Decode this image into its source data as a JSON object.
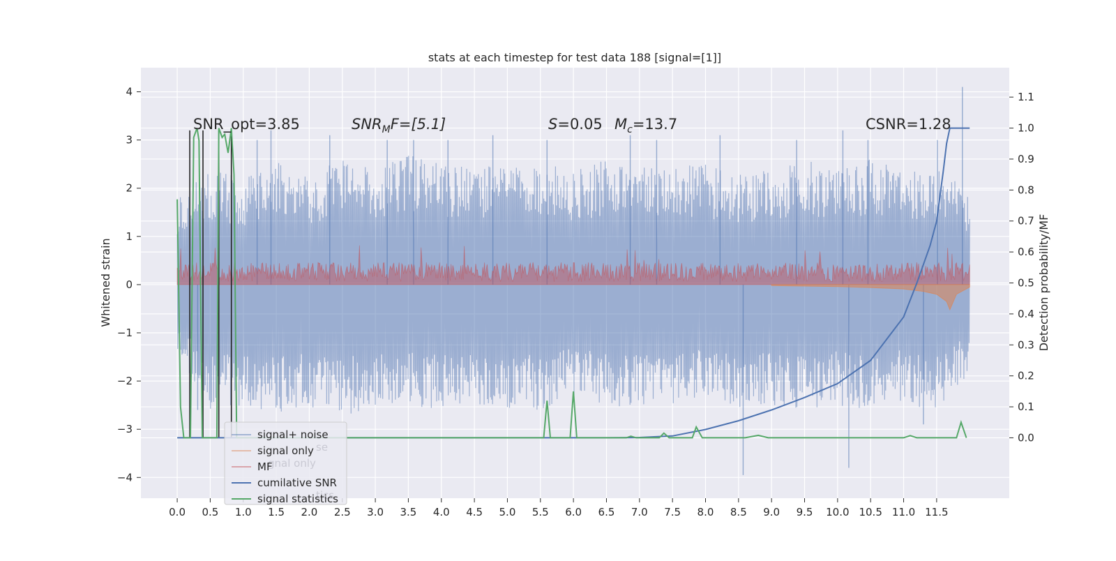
{
  "chart_data": {
    "type": "line",
    "title": "stats at each timestep for test data 188 [signal=[1]]",
    "ylabel_left": "Whitened strain",
    "ylabel_right": "Detection probability/MF",
    "xlim": [
      -0.55,
      12.6
    ],
    "ylim_left": [
      -4.43,
      4.5
    ],
    "ylim_right": [
      -0.195,
      1.195
    ],
    "x_ticks": [
      "0.0",
      "0.5",
      "1.0",
      "1.5",
      "2.0",
      "2.5",
      "3.0",
      "3.5",
      "4.0",
      "4.5",
      "5.0",
      "5.5",
      "6.0",
      "6.5",
      "7.0",
      "7.5",
      "8.0",
      "8.5",
      "9.0",
      "9.5",
      "10.0",
      "10.5",
      "11.0",
      "11.5"
    ],
    "y_ticks_left": [
      "4",
      "3",
      "2",
      "1",
      "0",
      "−1",
      "−2",
      "−3",
      "−4"
    ],
    "y_ticks_right": [
      "1.1",
      "1.0",
      "0.9",
      "0.8",
      "0.7",
      "0.6",
      "0.5",
      "0.4",
      "0.3",
      "0.2",
      "0.1",
      "0.0"
    ],
    "annotations": {
      "snr_opt": "SNR_opt=3.85",
      "snr_mf_base": "SNR",
      "snr_mf_sub": "M",
      "snr_mf_rest": "F=[5.1]",
      "s_italic": "S",
      "s_rest": "=0.05",
      "mc_base": "M",
      "mc_sub": "c",
      "mc_rest": "=13.7",
      "csnr": "CSNR=1.28"
    },
    "legend": {
      "placement": "lower-left",
      "entries": [
        {
          "label": "signal+ noise",
          "color": "#4c72b0"
        },
        {
          "label": "signal only",
          "color": "#dd8452"
        },
        {
          "label": "MF",
          "color": "#c44e52"
        },
        {
          "label": "cumilative SNR",
          "color": "#4c72b0"
        },
        {
          "label": "signal statistics",
          "color": "#55a868"
        }
      ],
      "ghost_entries": [
        "se",
        "gnal only",
        "tics"
      ]
    },
    "series": [
      {
        "name": "signal+ noise",
        "axis": "left",
        "color": "#4c72b0",
        "envelope_upper": [
          [
            0.0,
            1.9
          ],
          [
            0.5,
            2.4
          ],
          [
            1.0,
            2.2
          ],
          [
            1.5,
            2.7
          ],
          [
            2.0,
            2.3
          ],
          [
            2.5,
            2.6
          ],
          [
            3.0,
            2.4
          ],
          [
            3.5,
            2.7
          ],
          [
            4.0,
            2.5
          ],
          [
            4.5,
            2.5
          ],
          [
            5.0,
            2.4
          ],
          [
            5.5,
            2.5
          ],
          [
            6.0,
            2.4
          ],
          [
            6.5,
            2.6
          ],
          [
            7.0,
            2.4
          ],
          [
            7.5,
            2.6
          ],
          [
            8.0,
            2.5
          ],
          [
            8.5,
            2.3
          ],
          [
            9.0,
            2.4
          ],
          [
            9.5,
            2.6
          ],
          [
            10.0,
            2.4
          ],
          [
            10.5,
            2.6
          ],
          [
            11.0,
            2.4
          ],
          [
            11.5,
            2.5
          ],
          [
            12.0,
            1.9
          ]
        ],
        "envelope_lower": [
          [
            0.0,
            -1.5
          ],
          [
            0.5,
            -2.6
          ],
          [
            1.0,
            -2.5
          ],
          [
            1.5,
            -2.7
          ],
          [
            2.0,
            -2.6
          ],
          [
            2.5,
            -2.7
          ],
          [
            3.0,
            -2.6
          ],
          [
            3.5,
            -2.5
          ],
          [
            4.0,
            -2.6
          ],
          [
            4.5,
            -2.5
          ],
          [
            5.0,
            -2.6
          ],
          [
            5.5,
            -2.6
          ],
          [
            6.0,
            -2.4
          ],
          [
            6.5,
            -2.6
          ],
          [
            7.0,
            -2.5
          ],
          [
            7.5,
            -2.6
          ],
          [
            8.0,
            -2.4
          ],
          [
            8.5,
            -2.6
          ],
          [
            9.0,
            -2.5
          ],
          [
            9.5,
            -2.6
          ],
          [
            10.0,
            -2.5
          ],
          [
            10.5,
            -2.6
          ],
          [
            11.0,
            -2.4
          ],
          [
            11.5,
            -2.7
          ],
          [
            12.0,
            -1.8
          ]
        ],
        "spikes": [
          [
            0.31,
            -2.6
          ],
          [
            1.21,
            3.0
          ],
          [
            1.42,
            3.2
          ],
          [
            2.31,
            3.1
          ],
          [
            3.18,
            3.0
          ],
          [
            3.58,
            3.0
          ],
          [
            4.1,
            3.0
          ],
          [
            4.78,
            3.1
          ],
          [
            5.6,
            3.0
          ],
          [
            6.86,
            3.1
          ],
          [
            7.26,
            3.0
          ],
          [
            8.22,
            3.1
          ],
          [
            8.57,
            -3.95
          ],
          [
            9.38,
            3.0
          ],
          [
            10.08,
            3.2
          ],
          [
            10.17,
            -3.8
          ],
          [
            10.46,
            3.0
          ],
          [
            11.51,
            3.0
          ],
          [
            11.89,
            4.1
          ],
          [
            11.3,
            -2.9
          ]
        ]
      },
      {
        "name": "signal only",
        "axis": "left",
        "color": "#dd8452",
        "x": [
          9.0,
          9.5,
          10.0,
          10.5,
          11.0,
          11.3,
          11.5,
          11.65,
          11.7,
          11.8,
          12.0
        ],
        "y": [
          -0.02,
          -0.03,
          -0.04,
          -0.06,
          -0.09,
          -0.14,
          -0.2,
          -0.35,
          -0.52,
          -0.2,
          -0.05
        ]
      },
      {
        "name": "MF",
        "axis": "left",
        "color": "#c44e52",
        "mean_level": 0.25,
        "max_level": 0.85
      },
      {
        "name": "cumilative SNR",
        "axis": "right",
        "color": "#4c72b0",
        "x": [
          0.0,
          6.5,
          7.0,
          7.5,
          8.0,
          8.5,
          9.0,
          9.5,
          10.0,
          10.5,
          11.0,
          11.2,
          11.4,
          11.5,
          11.6,
          11.65,
          11.7,
          12.0
        ],
        "y": [
          0.0,
          0.0,
          0.001,
          0.006,
          0.027,
          0.055,
          0.09,
          0.13,
          0.175,
          0.25,
          0.39,
          0.5,
          0.62,
          0.7,
          0.86,
          0.95,
          1.0,
          1.0
        ]
      },
      {
        "name": "signal statistics",
        "axis": "right",
        "color": "#55a868",
        "x": [
          0.0,
          0.05,
          0.1,
          0.15,
          0.2,
          0.25,
          0.3,
          0.33,
          0.38,
          0.42,
          0.46,
          0.5,
          0.55,
          0.6,
          0.63,
          0.68,
          0.72,
          0.77,
          0.82,
          0.86,
          0.9,
          0.95,
          1.0,
          5.55,
          5.6,
          5.65,
          5.7,
          5.95,
          6.0,
          6.05,
          6.1,
          6.8,
          6.87,
          6.95,
          7.3,
          7.37,
          7.45,
          7.8,
          7.86,
          7.95,
          8.6,
          8.8,
          8.95,
          11.0,
          11.1,
          11.2,
          11.8,
          11.87,
          11.95
        ],
        "y": [
          0.77,
          0.1,
          0.0,
          0.0,
          0.0,
          0.97,
          1.0,
          0.96,
          0.0,
          0.0,
          0.0,
          0.0,
          0.0,
          0.0,
          1.0,
          0.97,
          0.98,
          0.92,
          1.0,
          0.85,
          0.0,
          0.0,
          0.0,
          0.0,
          0.12,
          0.0,
          0.0,
          0.0,
          0.15,
          0.0,
          0.0,
          0.0,
          0.005,
          0.0,
          0.0,
          0.015,
          0.0,
          0.0,
          0.035,
          0.0,
          0.0,
          0.008,
          0.0,
          0.0,
          0.007,
          0.0,
          0.0,
          0.05,
          0.0
        ]
      },
      {
        "name": "",
        "axis": "left",
        "color": "#222222",
        "style": "vertical-markers",
        "x": [
          0.19,
          0.39,
          0.63,
          0.82
        ]
      }
    ]
  }
}
